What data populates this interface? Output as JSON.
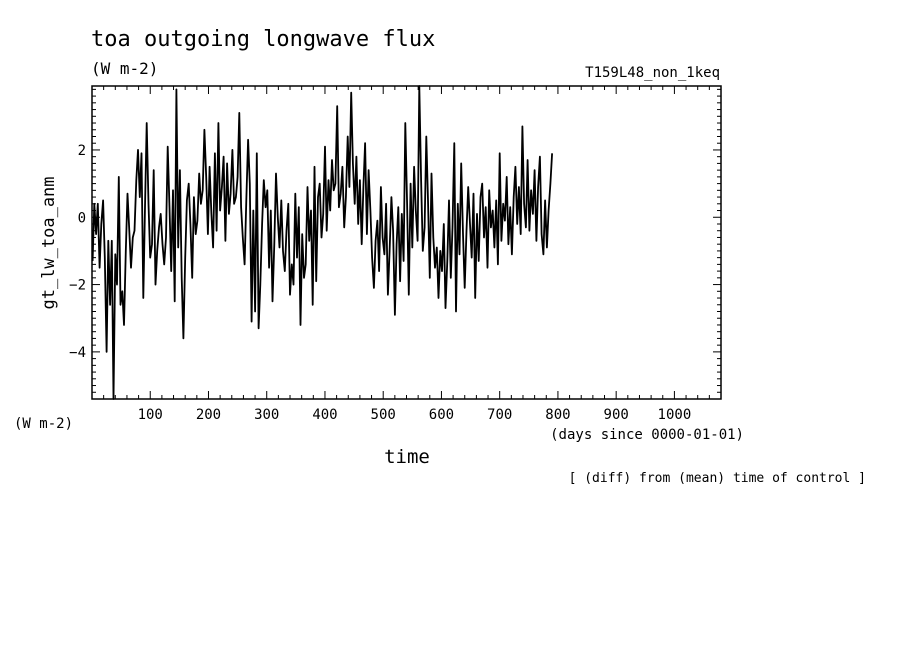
{
  "chart_data": {
    "type": "line",
    "title": "toa outgoing longwave flux",
    "title_unit": "(W m-2)",
    "experiment": "T159L48_non_1keq",
    "ylabel": "gt_lw_toa_anm",
    "yunit": "(W m-2)",
    "xlabel": "time",
    "xunit": "(days since 0000-01-01)",
    "footnote": "[ (diff) from (mean) time of control ]",
    "xlim": [
      0,
      1080
    ],
    "ylim": [
      -5.4,
      3.9
    ],
    "x_ticks": [
      100,
      200,
      300,
      400,
      500,
      600,
      700,
      800,
      900,
      1000
    ],
    "y_ticks": [
      -4,
      -2,
      0,
      2
    ],
    "x_tick_labels": [
      "100",
      "200",
      "300",
      "400",
      "500",
      "600",
      "700",
      "800",
      "900",
      "1000"
    ],
    "y_tick_labels": [
      "−4",
      "−2",
      "0",
      "2"
    ],
    "grid": false,
    "line_color": "#000000",
    "x_start": 1,
    "x_step": 3,
    "series": [
      {
        "values": [
          -1.3,
          0.4,
          -0.5,
          0.4,
          -1.5,
          -0.2,
          0.5,
          -1.2,
          -4.0,
          -0.7,
          -2.6,
          -0.7,
          -5.4,
          -1.1,
          -2.0,
          1.2,
          -2.6,
          -2.2,
          -3.2,
          -1.0,
          0.7,
          -0.4,
          -1.5,
          -0.6,
          -0.4,
          1.1,
          2.0,
          0.6,
          1.9,
          -2.4,
          0.3,
          2.8,
          0.4,
          -1.2,
          -0.8,
          1.4,
          -2.0,
          -1.0,
          -0.3,
          0.1,
          -0.8,
          -1.4,
          -0.6,
          2.1,
          0.3,
          -1.6,
          0.8,
          -2.5,
          3.8,
          -0.9,
          1.4,
          -1.8,
          -3.6,
          -1.2,
          0.5,
          1.0,
          -0.2,
          -1.8,
          0.6,
          -0.5,
          -0.1,
          1.3,
          0.4,
          0.8,
          2.6,
          1.2,
          -0.5,
          1.5,
          0.1,
          -0.9,
          1.9,
          -0.4,
          2.8,
          0.2,
          0.9,
          1.8,
          -0.7,
          1.6,
          0.1,
          0.7,
          2.0,
          0.4,
          0.6,
          1.2,
          3.1,
          0.3,
          -0.6,
          -1.4,
          0.5,
          2.3,
          1.0,
          -3.1,
          0.2,
          -2.8,
          1.9,
          -3.3,
          -2.0,
          -0.2,
          1.1,
          0.3,
          0.8,
          -1.5,
          0.2,
          -2.5,
          -0.8,
          1.3,
          0.0,
          -0.9,
          0.5,
          -1.0,
          -1.6,
          -0.4,
          0.4,
          -2.3,
          -1.4,
          -2.0,
          0.7,
          -1.2,
          0.3,
          -3.2,
          -0.5,
          -1.8,
          -1.4,
          0.9,
          -0.7,
          0.2,
          -2.6,
          1.5,
          -1.9,
          0.6,
          1.0,
          -0.6,
          0.1,
          2.1,
          -0.4,
          1.1,
          0.2,
          1.7,
          0.8,
          1.0,
          3.3,
          0.3,
          0.7,
          1.5,
          -0.3,
          0.6,
          2.4,
          0.9,
          3.7,
          1.6,
          0.4,
          1.8,
          -0.2,
          1.1,
          -0.8,
          0.9,
          2.2,
          -0.5,
          1.4,
          0.2,
          -1.2,
          -2.1,
          -0.7,
          -0.1,
          -1.6,
          0.9,
          -0.6,
          -1.1,
          0.4,
          -2.3,
          -1.0,
          0.6,
          -0.4,
          -2.9,
          -0.8,
          0.3,
          -1.9,
          0.1,
          -1.3,
          2.8,
          0.4,
          -2.3,
          1.0,
          -0.9,
          1.5,
          0.2,
          -0.7,
          3.9,
          1.1,
          -1.0,
          -0.3,
          2.4,
          0.5,
          -1.8,
          1.3,
          -0.6,
          -1.5,
          -0.9,
          -2.4,
          -1.0,
          -1.6,
          -0.2,
          -2.7,
          -1.3,
          0.5,
          -1.8,
          -0.3,
          2.2,
          -2.8,
          0.4,
          -1.1,
          1.6,
          -0.5,
          -2.1,
          -0.4,
          0.9,
          -0.2,
          -1.2,
          0.7,
          -2.4,
          0.1,
          -1.3,
          0.6,
          1.0,
          -0.6,
          0.3,
          -1.5,
          0.8,
          -0.3,
          0.2,
          -0.9,
          0.5,
          -1.4,
          1.9,
          -0.7,
          0.4,
          -0.1,
          1.2,
          -0.8,
          0.3,
          -1.1,
          0.6,
          1.5,
          -0.2,
          0.9,
          -0.5,
          2.7,
          0.4,
          -0.3,
          1.7,
          -0.4,
          0.8,
          0.1,
          1.4,
          -0.7,
          0.9,
          1.8,
          -0.5,
          -1.1,
          0.5,
          -0.9,
          0.2,
          1.0,
          1.9
        ]
      }
    ]
  }
}
